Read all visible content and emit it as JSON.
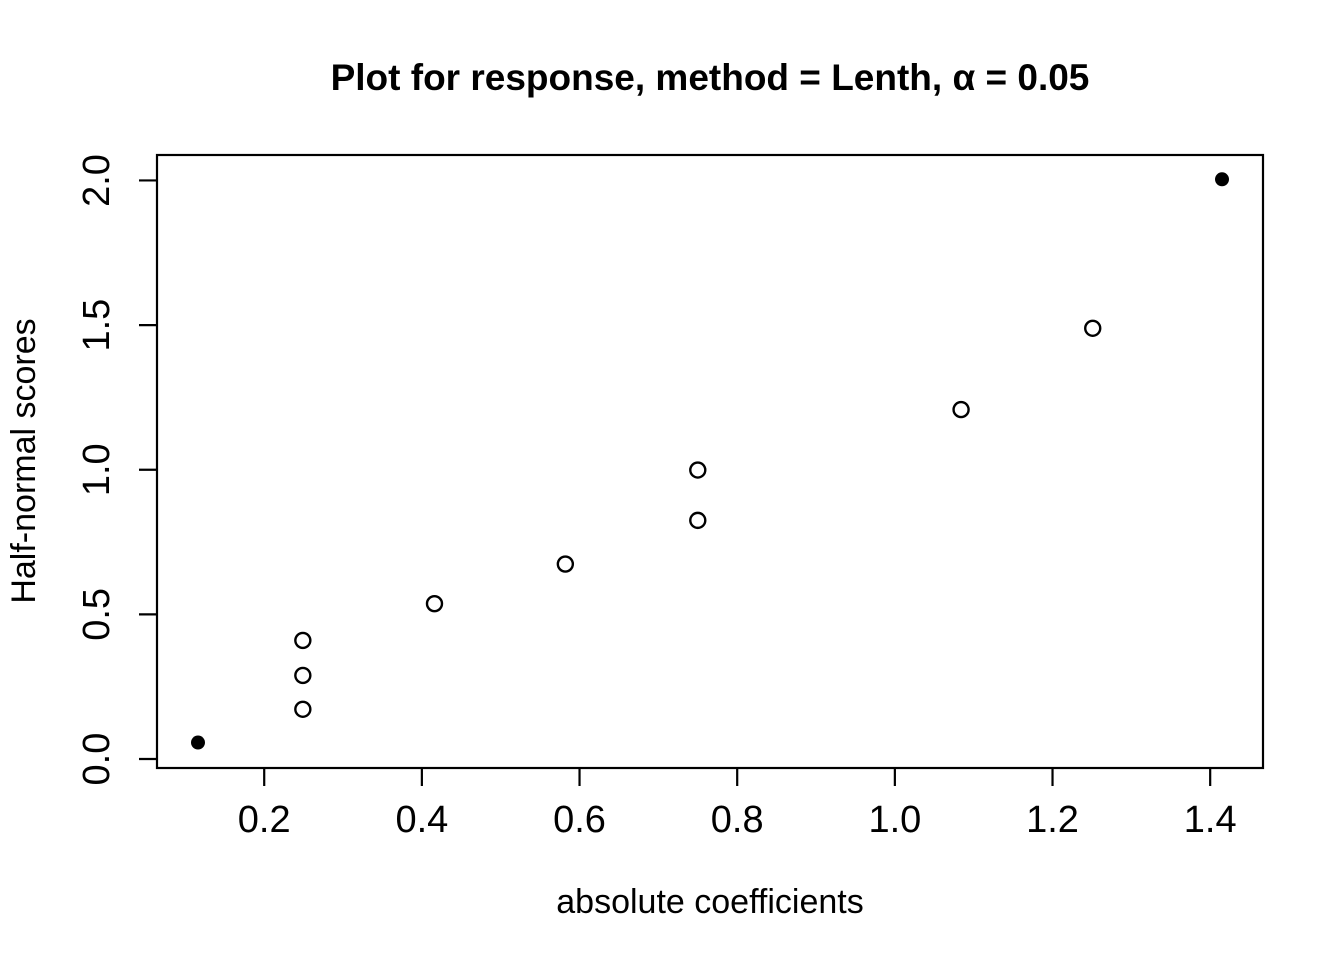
{
  "chart_data": {
    "type": "scatter",
    "title": "Plot for response, method = Lenth, α = 0.05",
    "xlabel": "absolute coefficients",
    "ylabel": "Half-normal scores",
    "xlim": [
      0.064,
      1.467
    ],
    "ylim": [
      -0.031,
      2.088
    ],
    "x_ticks": [
      0.2,
      0.4,
      0.6,
      0.8,
      1.0,
      1.2,
      1.4
    ],
    "x_tick_labels": [
      "0.2",
      "0.4",
      "0.6",
      "0.8",
      "1.0",
      "1.2",
      "1.4"
    ],
    "y_ticks": [
      0.0,
      0.5,
      1.0,
      1.5,
      2.0
    ],
    "y_tick_labels": [
      "0.0",
      "0.5",
      "1.0",
      "1.5",
      "2.0"
    ],
    "grid": false,
    "legend": "none",
    "marker_styles": {
      "open": "circle-outline",
      "filled": "circle-solid"
    },
    "points": [
      {
        "x": 0.116,
        "y": 0.057,
        "filled": true
      },
      {
        "x": 0.249,
        "y": 0.172,
        "filled": false
      },
      {
        "x": 0.249,
        "y": 0.289,
        "filled": false
      },
      {
        "x": 0.249,
        "y": 0.41,
        "filled": false
      },
      {
        "x": 0.416,
        "y": 0.537,
        "filled": false
      },
      {
        "x": 0.582,
        "y": 0.674,
        "filled": false
      },
      {
        "x": 0.75,
        "y": 0.825,
        "filled": false
      },
      {
        "x": 0.75,
        "y": 0.999,
        "filled": false
      },
      {
        "x": 1.084,
        "y": 1.208,
        "filled": false
      },
      {
        "x": 1.251,
        "y": 1.489,
        "filled": false
      },
      {
        "x": 1.415,
        "y": 2.004,
        "filled": true
      }
    ],
    "colors": {
      "foreground": "#000000",
      "background": "#ffffff"
    }
  }
}
